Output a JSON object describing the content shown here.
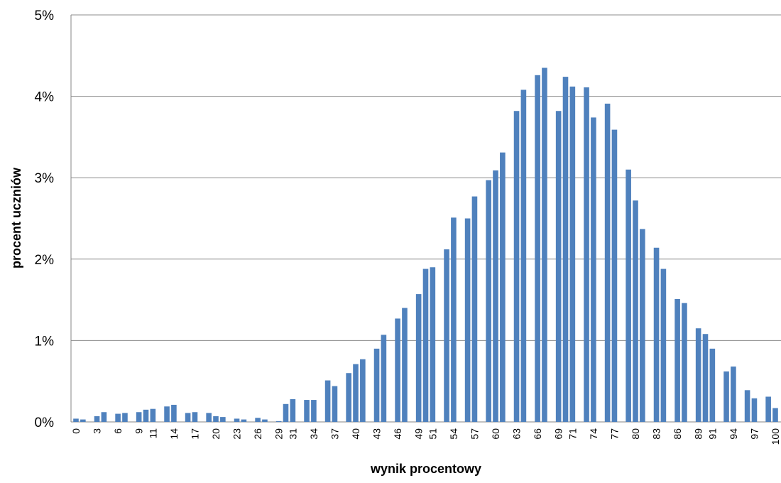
{
  "chart_data": {
    "type": "bar",
    "xlabel": "wynik procentowy",
    "ylabel": "procent uczniów",
    "ylim": [
      0,
      5
    ],
    "y_ticks": [
      {
        "value": 0,
        "label": "0%"
      },
      {
        "value": 1,
        "label": "1%"
      },
      {
        "value": 2,
        "label": "2%"
      },
      {
        "value": 3,
        "label": "3%"
      },
      {
        "value": 4,
        "label": "4%"
      },
      {
        "value": 5,
        "label": "5%"
      }
    ],
    "x_tick_labels": [
      "0",
      "3",
      "6",
      "9",
      "11",
      "14",
      "17",
      "20",
      "23",
      "26",
      "29",
      "31",
      "34",
      "37",
      "40",
      "43",
      "46",
      "49",
      "51",
      "54",
      "57",
      "60",
      "63",
      "66",
      "69",
      "71",
      "74",
      "77",
      "80",
      "83",
      "86",
      "89",
      "91",
      "94",
      "97",
      "100"
    ],
    "grid": true,
    "bar_color": "#4F81BD",
    "categories": [
      "0",
      "1",
      "3",
      "4",
      "6",
      "7",
      "9",
      "10",
      "11",
      "13",
      "14",
      "16",
      "17",
      "19",
      "20",
      "21",
      "23",
      "24",
      "26",
      "27",
      "29",
      "30",
      "31",
      "33",
      "34",
      "36",
      "37",
      "39",
      "40",
      "41",
      "43",
      "44",
      "46",
      "47",
      "49",
      "50",
      "51",
      "53",
      "54",
      "56",
      "57",
      "59",
      "60",
      "61",
      "63",
      "64",
      "66",
      "67",
      "69",
      "70",
      "71",
      "73",
      "74",
      "76",
      "77",
      "79",
      "80",
      "81",
      "83",
      "84",
      "86",
      "87",
      "89",
      "90",
      "91",
      "93",
      "94",
      "96",
      "97",
      "99",
      "100"
    ],
    "values": [
      0.04,
      0.03,
      0.07,
      0.12,
      0.1,
      0.11,
      0.12,
      0.15,
      0.16,
      0.19,
      0.21,
      0.11,
      0.12,
      0.11,
      0.07,
      0.06,
      0.04,
      0.03,
      0.05,
      0.03,
      0.01,
      0.22,
      0.28,
      0.27,
      0.27,
      0.51,
      0.44,
      0.6,
      0.71,
      0.77,
      0.9,
      1.07,
      1.27,
      1.4,
      1.57,
      1.88,
      1.9,
      2.12,
      2.51,
      2.5,
      2.77,
      2.97,
      3.09,
      3.31,
      3.82,
      4.08,
      4.26,
      4.35,
      3.82,
      4.24,
      4.12,
      4.11,
      3.74,
      3.91,
      3.59,
      3.1,
      2.72,
      2.37,
      2.14,
      1.88,
      1.51,
      1.46,
      1.15,
      1.08,
      0.9,
      0.62,
      0.68,
      0.39,
      0.29,
      0.31,
      0.17
    ]
  }
}
